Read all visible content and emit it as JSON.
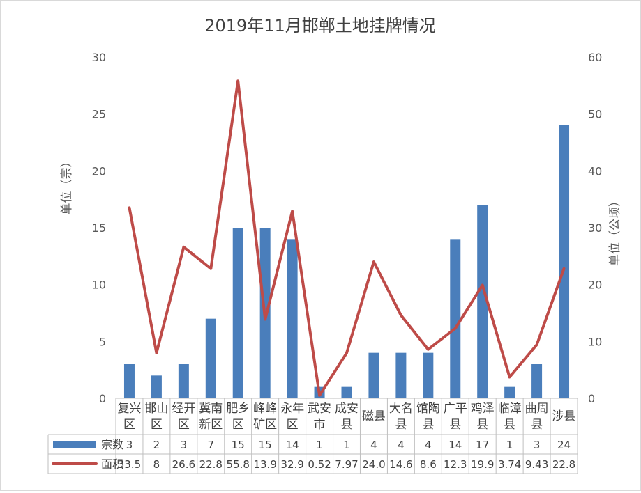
{
  "chart_data": {
    "type": "bar",
    "title": "2019年11月邯郸土地挂牌情况",
    "ylabel_left": "单位（宗）",
    "ylabel_right": "单位（公顷）",
    "ylim_left": [
      0,
      30
    ],
    "ylim_right": [
      0,
      60
    ],
    "yticks_left": [
      0,
      5,
      10,
      15,
      20,
      25,
      30
    ],
    "yticks_right": [
      0,
      10,
      20,
      30,
      40,
      50,
      60
    ],
    "categories": [
      [
        "复兴",
        "区"
      ],
      [
        "邯山",
        "区"
      ],
      [
        "经开",
        "区"
      ],
      [
        "冀南",
        "新区"
      ],
      [
        "肥乡",
        "区"
      ],
      [
        "峰峰",
        "矿区"
      ],
      [
        "永年",
        "区"
      ],
      [
        "武安",
        "市"
      ],
      [
        "成安",
        "县"
      ],
      [
        "磁县"
      ],
      [
        "大名",
        "县"
      ],
      [
        "馆陶",
        "县"
      ],
      [
        "广平",
        "县"
      ],
      [
        "鸡泽",
        "县"
      ],
      [
        "临漳",
        "县"
      ],
      [
        "曲周",
        "县"
      ],
      [
        "涉县"
      ]
    ],
    "series": [
      {
        "name": "宗数",
        "type": "bar",
        "axis": "left",
        "color": "#4a7ebb",
        "values": [
          3,
          2,
          3,
          7,
          15,
          15,
          14,
          1,
          1,
          4,
          4,
          4,
          14,
          17,
          1,
          3,
          24
        ],
        "labels": [
          "3",
          "2",
          "3",
          "7",
          "15",
          "15",
          "14",
          "1",
          "1",
          "4",
          "4",
          "4",
          "14",
          "17",
          "1",
          "3",
          "24"
        ]
      },
      {
        "name": "面积",
        "type": "line",
        "axis": "right",
        "color": "#be4b48",
        "values": [
          33.5,
          8,
          26.6,
          22.8,
          55.8,
          13.9,
          32.9,
          0.52,
          7.97,
          24.0,
          14.6,
          8.6,
          12.3,
          19.9,
          3.74,
          9.43,
          22.8
        ],
        "labels": [
          "33.5",
          "8",
          "26.6",
          "22.8",
          "55.8",
          "13.9",
          "32.9",
          "0.52",
          "7.97",
          "24.0",
          "14.6",
          "8.6",
          "12.3",
          "19.9",
          "3.74",
          "9.43",
          "22.8"
        ]
      }
    ],
    "data_table": true,
    "grid": false
  }
}
